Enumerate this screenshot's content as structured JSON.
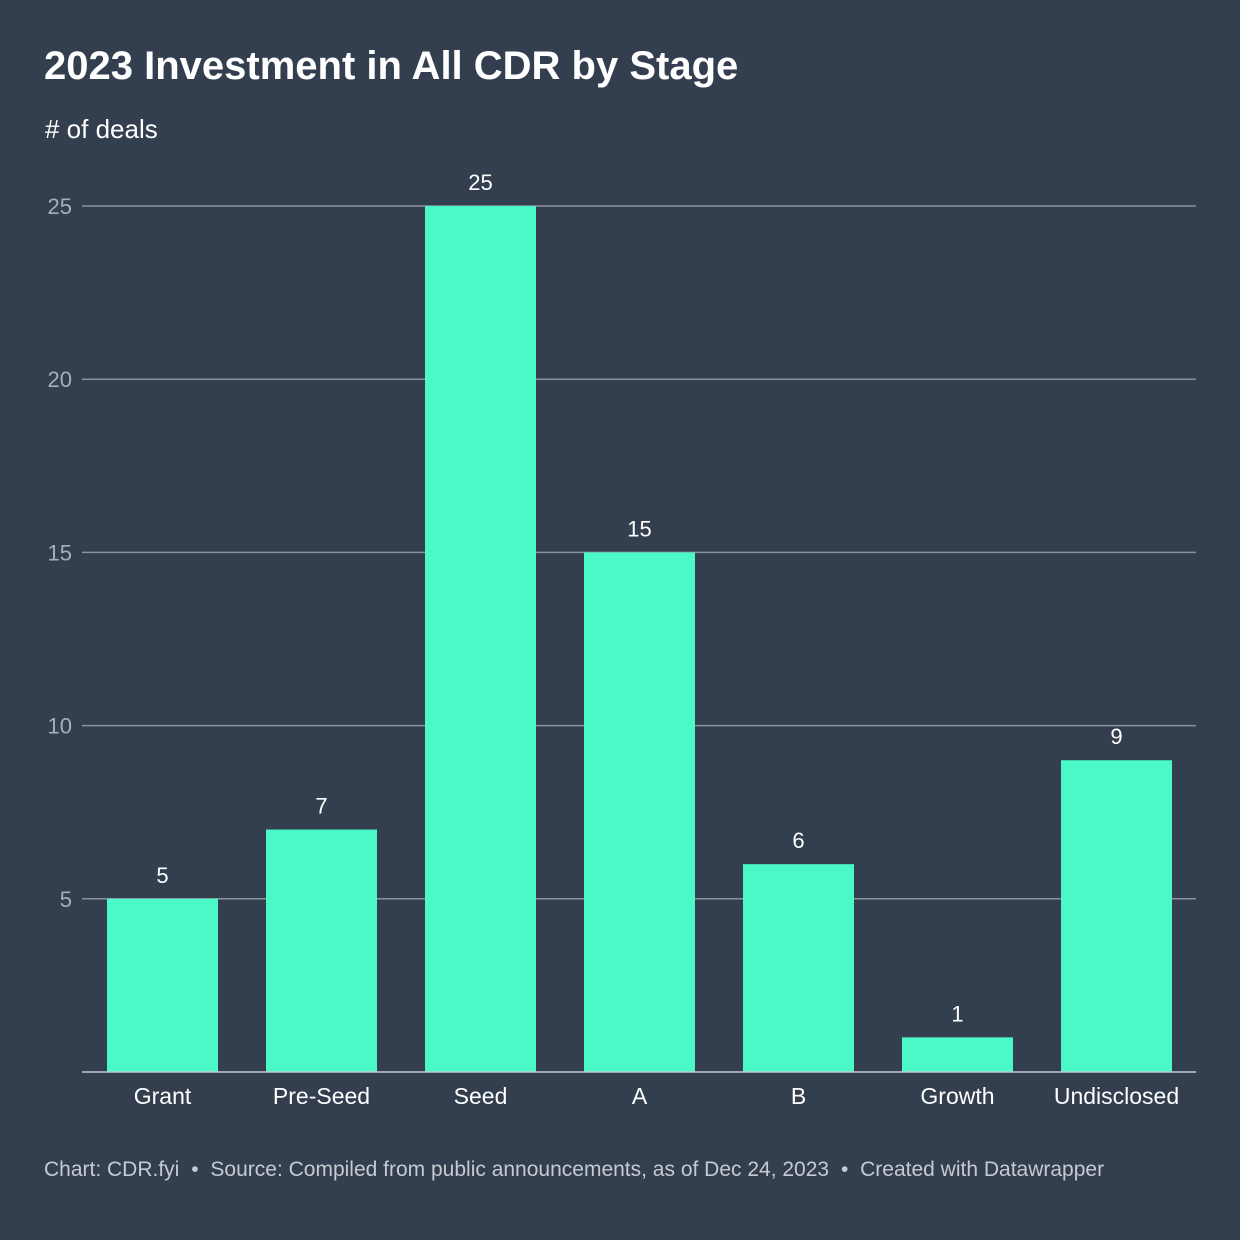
{
  "chart_data": {
    "type": "bar",
    "title": "2023 Investment in All CDR by Stage",
    "subtitle": "# of deals",
    "categories": [
      "Grant",
      "Pre-Seed",
      "Seed",
      "A",
      "B",
      "Growth",
      "Undisclosed"
    ],
    "values": [
      5,
      7,
      25,
      15,
      6,
      1,
      9
    ],
    "ylim": [
      0,
      25
    ],
    "yticks": [
      5,
      10,
      15,
      20,
      25
    ],
    "grid": true,
    "xlabel": "",
    "ylabel": ""
  },
  "footer": {
    "chart_credit": "Chart: CDR.fyi",
    "separator": "•",
    "source": "Source: Compiled from public announcements, as of Dec 24, 2023",
    "created_with": "Created with Datawrapper"
  },
  "colors": {
    "background": "#333e4f",
    "bar": "#4af8c8",
    "gridline": "#8a929e",
    "axis_text": "#a9aeb8",
    "label_text": "#ffffff"
  }
}
